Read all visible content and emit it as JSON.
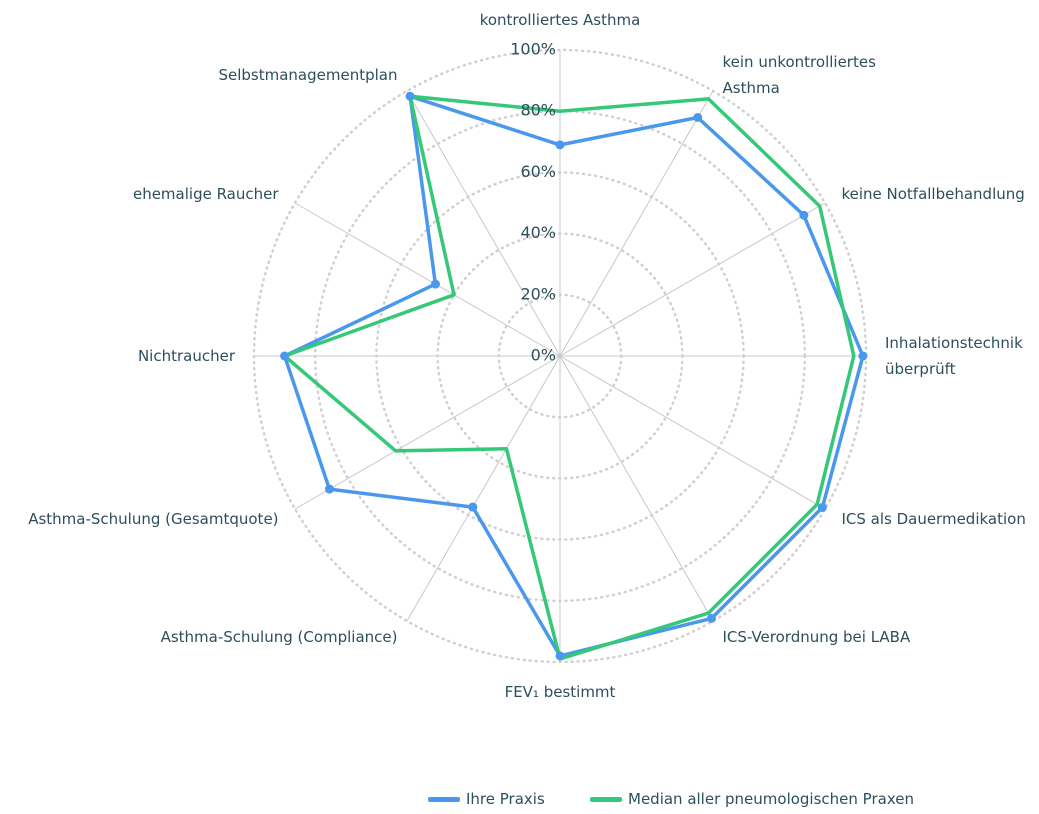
{
  "chart_data": {
    "type": "radar",
    "categories": [
      "kontrolliertes Asthma",
      "kein unkontrolliertes Asthma",
      "keine Notfallbehandlung",
      "Inhalationstechnik überprüft",
      "ICS als Dauermedikation",
      "ICS-Verordnung bei LABA",
      "FEV₁ bestimmt",
      "Asthma-Schulung (Compliance)",
      "Asthma-Schulung (Gesamtquote)",
      "Nichtraucher",
      "ehemalige Raucher",
      "Selbstmanagementplan"
    ],
    "series": [
      {
        "name": "Ihre Praxis",
        "color": "#4a98ee",
        "values": [
          69,
          90,
          92,
          99,
          99,
          99,
          98,
          57,
          87,
          90,
          47,
          98
        ]
      },
      {
        "name": "Median aller pneumologischen Praxen",
        "color": "#35c878",
        "values": [
          80,
          97,
          98,
          96,
          97,
          97,
          99,
          35,
          62,
          90,
          40,
          98
        ]
      }
    ],
    "ylim": [
      0,
      100
    ],
    "yticks": [
      {
        "value": 0,
        "label": "0%"
      },
      {
        "value": 20,
        "label": "20%"
      },
      {
        "value": 40,
        "label": "40%"
      },
      {
        "value": 60,
        "label": "60%"
      },
      {
        "value": 80,
        "label": "80%"
      },
      {
        "value": 100,
        "label": "100%"
      }
    ],
    "grid": true,
    "legend": "bottom"
  }
}
